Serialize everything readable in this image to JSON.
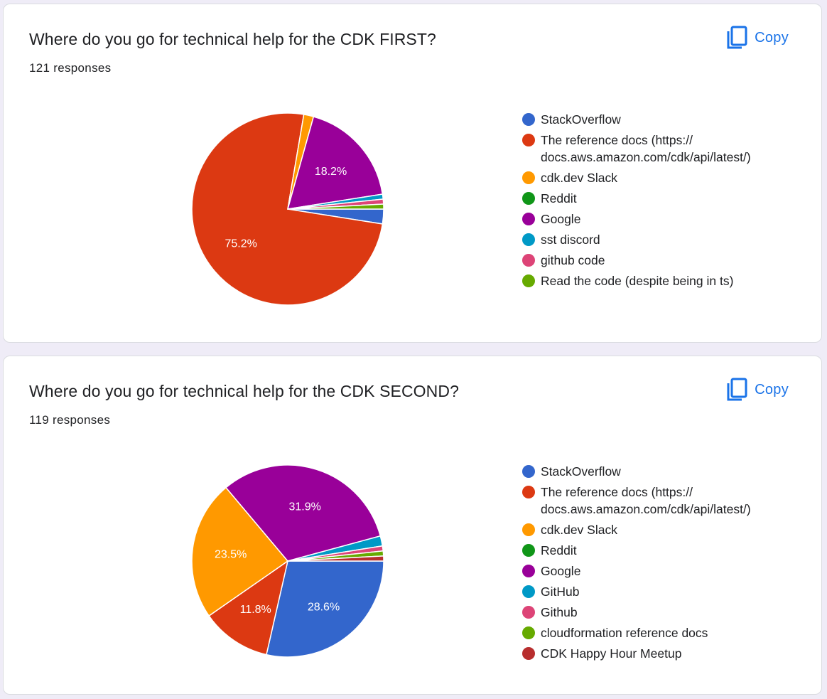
{
  "charts": [
    {
      "title": "Where do you go for technical help for the CDK FIRST?",
      "responses": "121 responses",
      "copy_label": "Copy",
      "copy_icon": "copy-icon"
    },
    {
      "title": "Where do you go for technical help for the CDK SECOND?",
      "responses": "119 responses",
      "copy_label": "Copy",
      "copy_icon": "copy-icon"
    }
  ],
  "chart_data": [
    {
      "type": "pie",
      "title": "Where do you go for technical help for the CDK FIRST?",
      "total_responses": 121,
      "labels": [
        "StackOverflow",
        "The reference docs (https:// docs.aws.amazon.com/cdk/api/latest/)",
        "cdk.dev Slack",
        "Reddit",
        "Google",
        "sst discord",
        "github code",
        "Read the code (despite being in ts)"
      ],
      "values": [
        3,
        91,
        2,
        0,
        22,
        1,
        1,
        1
      ],
      "colors": [
        "#3366cc",
        "#dc3912",
        "#ff9900",
        "#109618",
        "#990099",
        "#0099c6",
        "#dd4477",
        "#66aa00"
      ],
      "slice_labels": [
        "",
        "75.2%",
        "",
        "",
        "18.2%",
        "",
        "",
        ""
      ],
      "legend_position": "right"
    },
    {
      "type": "pie",
      "title": "Where do you go for technical help for the CDK SECOND?",
      "total_responses": 119,
      "labels": [
        "StackOverflow",
        "The reference docs (https:// docs.aws.amazon.com/cdk/api/latest/)",
        "cdk.dev Slack",
        "Reddit",
        "Google",
        "GitHub",
        "Github",
        "cloudformation reference docs",
        "CDK Happy Hour Meetup"
      ],
      "values": [
        34,
        14,
        28,
        0,
        38,
        2,
        1,
        1,
        1
      ],
      "colors": [
        "#3366cc",
        "#dc3912",
        "#ff9900",
        "#109618",
        "#990099",
        "#0099c6",
        "#dd4477",
        "#66aa00",
        "#b82e2e"
      ],
      "slice_labels": [
        "28.6%",
        "11.8%",
        "23.5%",
        "",
        "31.9%",
        "",
        "",
        "",
        ""
      ],
      "legend_position": "right"
    }
  ]
}
